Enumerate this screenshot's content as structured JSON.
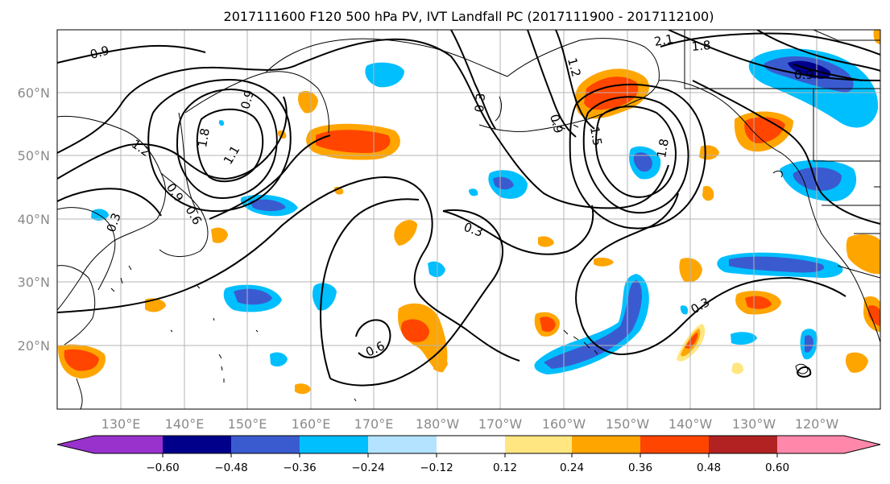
{
  "title": "2017111600 F120 500 hPa PV, IVT Landfall PC (2017111900 - 2017112100)",
  "lat_labels": [
    "60°N",
    "50°N",
    "40°N",
    "30°N",
    "20°N"
  ],
  "lon_labels": [
    "130°E",
    "140°E",
    "150°E",
    "160°E",
    "170°E",
    "180°W",
    "170°W",
    "160°W",
    "150°W",
    "140°W",
    "130°W",
    "120°W"
  ],
  "colorbar": {
    "colors": [
      "#9932cc",
      "#00008b",
      "#3a5bd0",
      "#00bfff",
      "#b3e3ff",
      "#ffffff",
      "#ffe680",
      "#ffa500",
      "#ff4500",
      "#b22222",
      "#ff88aa"
    ],
    "tick_labels": [
      "−0.60",
      "−0.48",
      "−0.36",
      "−0.24",
      "−0.12",
      "0.12",
      "0.24",
      "0.36",
      "0.48",
      "0.60"
    ]
  },
  "contour_labels": [
    "0.9",
    "1.2",
    "1.8",
    "2.1",
    "1.2",
    "1.8",
    "1.5",
    "0.9",
    "0.3",
    "0.3",
    "0.3",
    "0.6",
    "0.9",
    "0.6",
    "0.3",
    "1.1",
    "1.8",
    "0.9",
    "0.9"
  ]
}
